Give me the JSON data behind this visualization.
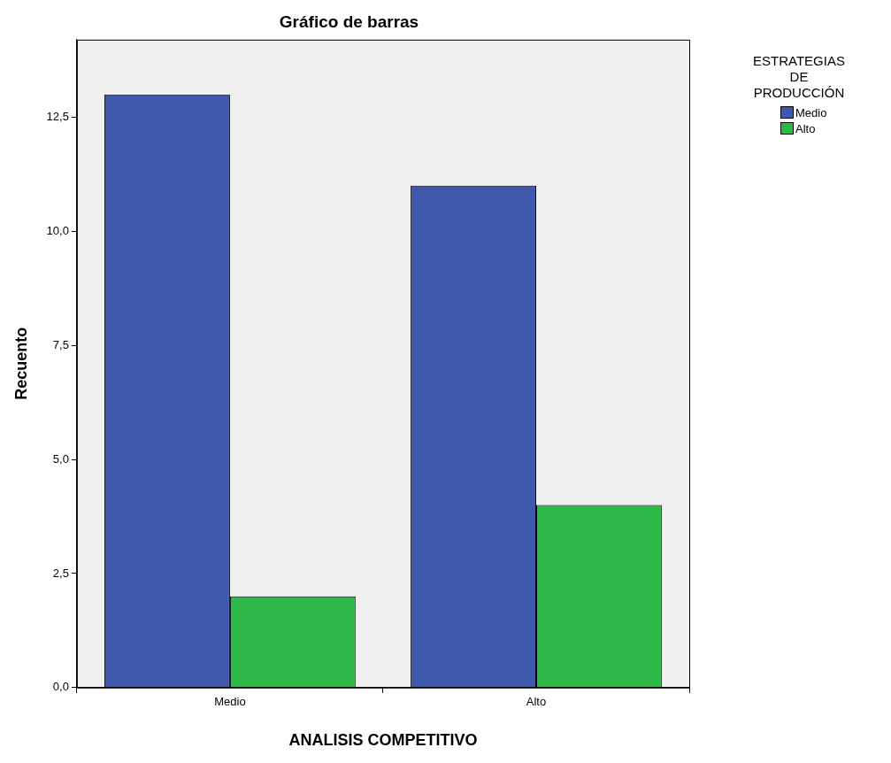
{
  "chart_data": {
    "type": "bar",
    "title": "Gráfico de barras",
    "xlabel": "ANALISIS COMPETITIVO",
    "ylabel": "Recuento",
    "legend_title": "ESTRATEGIAS DE PRODUCCIÓN",
    "categories": [
      "Medio",
      "Alto"
    ],
    "series": [
      {
        "name": "Medio",
        "color": "#3e58ac",
        "values": [
          13,
          11
        ]
      },
      {
        "name": "Alto",
        "color": "#2eb848",
        "values": [
          2,
          4
        ]
      }
    ],
    "ylim": [
      0,
      14.2
    ],
    "yticks": [
      {
        "value": 0,
        "label": "0,0"
      },
      {
        "value": 2.5,
        "label": "2,5"
      },
      {
        "value": 5,
        "label": "5,0"
      },
      {
        "value": 7.5,
        "label": "7,5"
      },
      {
        "value": 10,
        "label": "10,0"
      },
      {
        "value": 12.5,
        "label": "12,5"
      }
    ],
    "grid": false,
    "legend": "top right"
  }
}
